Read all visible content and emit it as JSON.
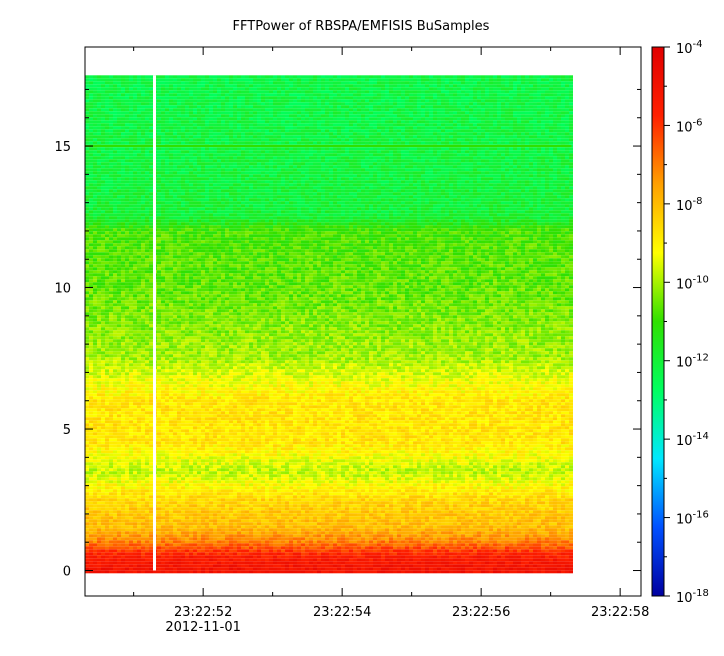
{
  "chart_data": {
    "type": "heatmap",
    "title": "FFTPower of RBSPA/EMFISIS  BuSamples",
    "xlabel": "",
    "ylabel": "",
    "x_ticks": [
      {
        "label": "23:22:52",
        "sub": "2012-11-01"
      },
      {
        "label": "23:22:54",
        "sub": ""
      },
      {
        "label": "23:22:56",
        "sub": ""
      },
      {
        "label": "23:22:58",
        "sub": ""
      }
    ],
    "x_minor_ticks": [
      "23:22:51",
      "23:22:53",
      "23:22:55",
      "23:22:57"
    ],
    "x_range": [
      "23:22:50.3",
      "23:22:58.3"
    ],
    "y_ticks": [
      0,
      5,
      10,
      15
    ],
    "y_range": [
      -0.9,
      18.5
    ],
    "data_extent": {
      "x": [
        "23:22:50.3",
        "23:22:57.3"
      ],
      "y": [
        0,
        17.5
      ]
    },
    "data_gap_time": "23:22:51.3",
    "colorbar": {
      "scale": "log",
      "range": [
        1e-18,
        0.0001
      ],
      "tick_labels": [
        {
          "base": "10",
          "exp": "-4"
        },
        {
          "base": "10",
          "exp": "-6"
        },
        {
          "base": "10",
          "exp": "-8"
        },
        {
          "base": "10",
          "exp": "-10"
        },
        {
          "base": "10",
          "exp": "-12"
        },
        {
          "base": "10",
          "exp": "-14"
        },
        {
          "base": "10",
          "exp": "-16"
        },
        {
          "base": "10",
          "exp": "-18"
        }
      ],
      "colors": [
        "#0000a0",
        "#0050ff",
        "#00e8ff",
        "#00ff60",
        "#30e000",
        "#ffff00",
        "#ffa000",
        "#ff2000",
        "#e00000"
      ]
    },
    "power_profile": [
      {
        "y": 0.0,
        "log_power": -5.0
      },
      {
        "y": 0.5,
        "log_power": -5.5
      },
      {
        "y": 1.0,
        "log_power": -7.0
      },
      {
        "y": 1.5,
        "log_power": -8.0
      },
      {
        "y": 2.5,
        "log_power": -8.5
      },
      {
        "y": 3.5,
        "log_power": -9.8
      },
      {
        "y": 4.5,
        "log_power": -8.8
      },
      {
        "y": 6.0,
        "log_power": -8.8
      },
      {
        "y": 7.5,
        "log_power": -10.0
      },
      {
        "y": 10.0,
        "log_power": -10.6
      },
      {
        "y": 12.0,
        "log_power": -10.8
      },
      {
        "y": 12.5,
        "log_power": -12.0
      },
      {
        "y": 15.0,
        "log_power": -12.2
      },
      {
        "y": 17.5,
        "log_power": -12.3
      }
    ],
    "line_features": [
      {
        "y": 15.0,
        "log_power": -11.0
      }
    ]
  }
}
